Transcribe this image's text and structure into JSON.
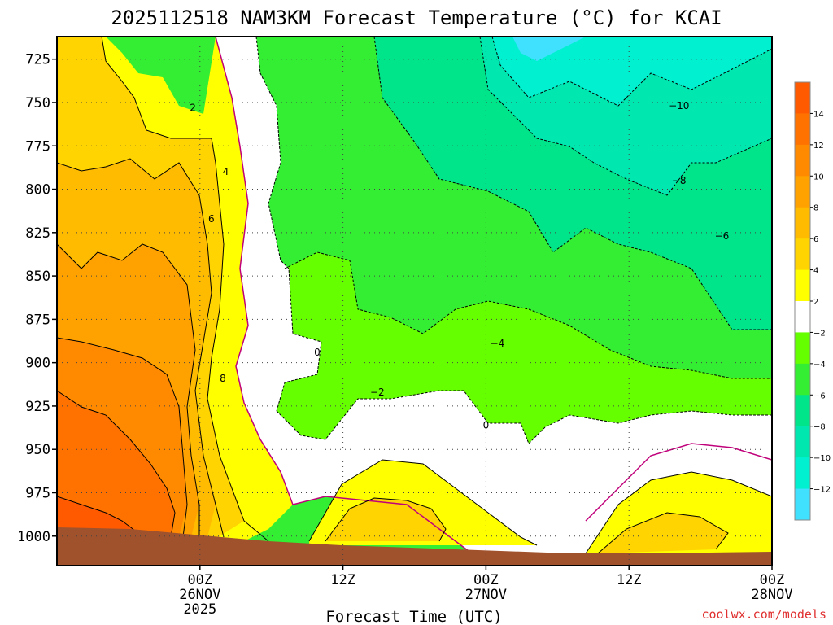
{
  "chart_data": {
    "type": "heatmap",
    "title": "2025112518 NAM3KM Forecast Temperature (°C) for KCAI",
    "xlabel": "Forecast Time (UTC)",
    "y_axis": {
      "ticks": [
        "725",
        "750",
        "775",
        "800",
        "825",
        "850",
        "875",
        "900",
        "925",
        "950",
        "975",
        "1000"
      ],
      "values": [
        725,
        750,
        775,
        800,
        825,
        850,
        875,
        900,
        925,
        950,
        975,
        1000
      ],
      "range": [
        712,
        1017
      ],
      "direction": "pressure decreasing upward"
    },
    "x_axis": {
      "range_hours": [
        -10,
        40
      ],
      "ticks": [
        {
          "hour": 0,
          "lines": [
            "00Z",
            "26NOV",
            "2025"
          ]
        },
        {
          "hour": 10,
          "lines": [
            "12Z"
          ]
        },
        {
          "hour": 20,
          "lines": [
            "00Z",
            "27NOV"
          ]
        },
        {
          "hour": 30,
          "lines": [
            "12Z"
          ]
        },
        {
          "hour": 40,
          "lines": [
            "00Z",
            "28NOV"
          ]
        }
      ],
      "grid": true
    },
    "colorbar": {
      "position": "right",
      "levels": [
        -12,
        -10,
        -8,
        -6,
        -4,
        -2,
        2,
        4,
        6,
        8,
        10,
        12,
        14
      ],
      "labels": [
        "14",
        "12",
        "10",
        "8",
        "6",
        "4",
        "2",
        "−2",
        "−4",
        "−6",
        "−8",
        "−10",
        "−12"
      ],
      "bins": [
        {
          "from": 14,
          "to": 16,
          "color": "#ff5a00"
        },
        {
          "from": 12,
          "to": 14,
          "color": "#ff7200"
        },
        {
          "from": 10,
          "to": 12,
          "color": "#ff8a00"
        },
        {
          "from": 8,
          "to": 10,
          "color": "#ffa200"
        },
        {
          "from": 6,
          "to": 8,
          "color": "#ffbb00"
        },
        {
          "from": 4,
          "to": 6,
          "color": "#ffd400"
        },
        {
          "from": 2,
          "to": 4,
          "color": "#ffff00"
        },
        {
          "from": -2,
          "to": 2,
          "color": "#ffffff"
        },
        {
          "from": -4,
          "to": -2,
          "color": "#66ff00"
        },
        {
          "from": -6,
          "to": -4,
          "color": "#33ee33"
        },
        {
          "from": -8,
          "to": -6,
          "color": "#00e58a"
        },
        {
          "from": -10,
          "to": -8,
          "color": "#00e8b0"
        },
        {
          "from": -12,
          "to": -10,
          "color": "#00f0d0"
        },
        {
          "from": -14,
          "to": -12,
          "color": "#40e0ff"
        }
      ]
    },
    "contour_labels": [
      {
        "text": "2",
        "x": -0.5,
        "p": 753
      },
      {
        "text": "4",
        "x": 1.8,
        "p": 790
      },
      {
        "text": "6",
        "x": 0.8,
        "p": 817
      },
      {
        "text": "8",
        "x": 1.6,
        "p": 909
      },
      {
        "text": "0",
        "x": 8.2,
        "p": 894
      },
      {
        "text": "−2",
        "x": 12.4,
        "p": 917
      },
      {
        "text": "0",
        "x": 20,
        "p": 936
      },
      {
        "text": "−4",
        "x": 20.8,
        "p": 889
      },
      {
        "text": "−10",
        "x": 33.5,
        "p": 752
      },
      {
        "text": "−8",
        "x": 33.5,
        "p": 795
      },
      {
        "text": "−6",
        "x": 36.5,
        "p": 827
      }
    ],
    "ground_color": "#a0522d"
  },
  "credit": "coolwx.com/models",
  "colors": {
    "background": "#ffffff",
    "grid": "#555555",
    "magenta_zero": "#c0007a",
    "credit": "#e03030"
  }
}
